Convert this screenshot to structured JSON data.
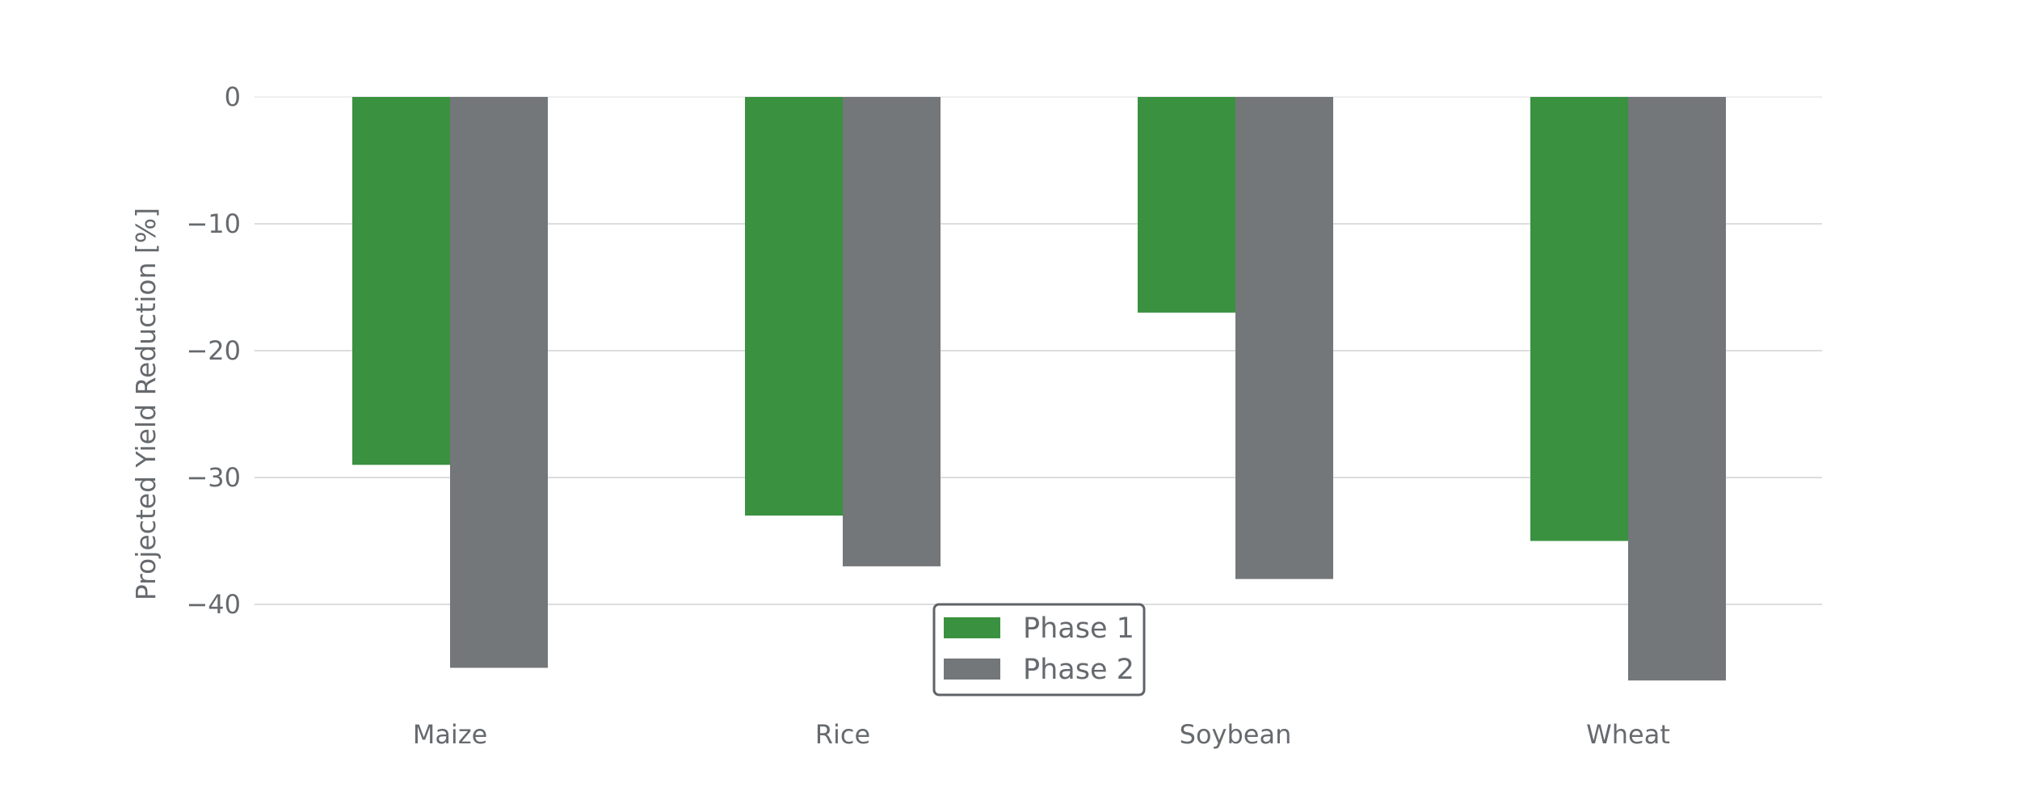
{
  "chart_data": {
    "type": "bar",
    "title": "",
    "xlabel": "",
    "ylabel": "Projected Yield Reduction [%]",
    "categories": [
      "Maize",
      "Rice",
      "Soybean",
      "Wheat"
    ],
    "series": [
      {
        "name": "Phase 1",
        "color": "#3a913f",
        "values": [
          -29,
          -33,
          -17,
          -35
        ]
      },
      {
        "name": "Phase 2",
        "color": "#73777a",
        "values": [
          -45,
          -37,
          -38,
          -46
        ]
      }
    ],
    "ylim": [
      -47.5,
      0
    ],
    "yticks": [
      0,
      -10,
      -20,
      -30,
      -40
    ],
    "ytick_labels": [
      "0",
      "−10",
      "−20",
      "−30",
      "−40"
    ],
    "grid": true,
    "legend_position": "bottom-center"
  }
}
